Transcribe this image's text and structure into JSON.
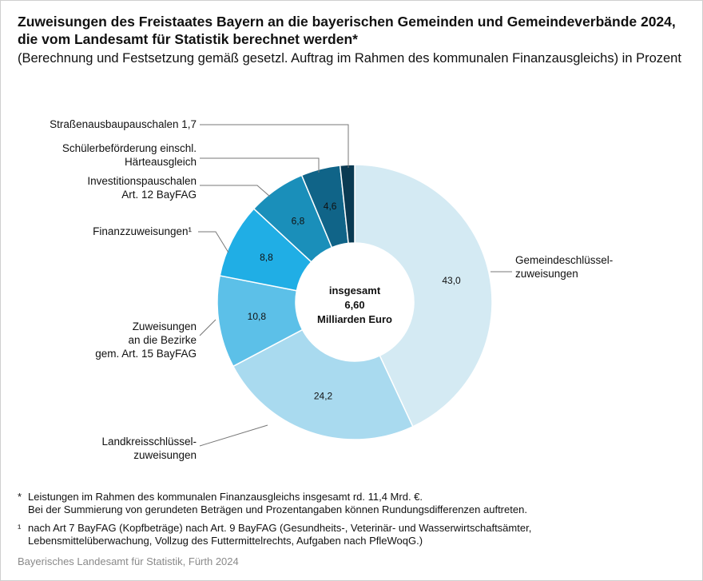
{
  "title": "Zuweisungen des Freistaates Bayern an die bayerischen Gemeinden und Gemeindeverbände 2024, die vom Landesamt für Statistik berechnet werden*",
  "subtitle": "(Berechnung und Festsetzung gemäß gesetzl. Auftrag im Rahmen des kommunalen Finanzausgleichs) in Prozent",
  "chart_data": {
    "type": "pie",
    "donut": true,
    "center_label": [
      "insgesamt",
      "6,60",
      "Milliarden Euro"
    ],
    "unit": "Prozent",
    "slices": [
      {
        "label": "Gemeindeschlüsselzuweisungen",
        "label_lines": [
          "Gemeindeschlüssel-",
          "zuweisungen"
        ],
        "value": 43.0,
        "value_label": "43,0",
        "color": "#d4eaf3"
      },
      {
        "label": "Landkreisschlüsselzuweisungen",
        "label_lines": [
          "Landkreisschlüssel-",
          "zuweisungen"
        ],
        "value": 24.2,
        "value_label": "24,2",
        "color": "#a9daef"
      },
      {
        "label": "Zuweisungen an die Bezirke gem. Art. 15 BayFAG",
        "label_lines": [
          "Zuweisungen",
          "an die Bezirke",
          "gem. Art. 15 BayFAG"
        ],
        "value": 10.8,
        "value_label": "10,8",
        "color": "#5cc0e8"
      },
      {
        "label": "Finanzzuweisungen¹",
        "label_lines": [
          "Finanzzuweisungen¹"
        ],
        "value": 8.8,
        "value_label": "8,8",
        "color": "#20aee5"
      },
      {
        "label": "Investitionspauschalen Art. 12 BayFAG",
        "label_lines": [
          "Investitionspauschalen",
          "Art. 12 BayFAG"
        ],
        "value": 6.8,
        "value_label": "6,8",
        "color": "#1a8fba"
      },
      {
        "label": "Schülerbeförderung einschl. Härteausgleich",
        "label_lines": [
          "Schülerbeförderung einschl.",
          "Härteausgleich"
        ],
        "value": 4.6,
        "value_label": "4,6",
        "color": "#106488"
      },
      {
        "label": "Straßenausbaupauschalen",
        "label_lines": [
          "Straßenausbaupauschalen 1,7"
        ],
        "value": 1.7,
        "value_label": "",
        "color": "#0a3a52"
      }
    ]
  },
  "footnotes": [
    {
      "mark": "*",
      "lines": [
        "Leistungen im Rahmen des kommunalen Finanzausgleichs insgesamt rd. 11,4 Mrd. €.",
        "Bei der Summierung von gerundeten Beträgen und Prozentangaben können Rundungsdifferenzen auftreten."
      ]
    },
    {
      "mark": "¹",
      "lines": [
        "nach Art 7 BayFAG (Kopfbeträge) nach Art. 9 BayFAG (Gesundheits-, Veterinär- und Wasserwirtschaftsämter,",
        "Lebensmittelüberwachung, Vollzug des Futtermittelrechts, Aufgaben nach PfleWoqG.)"
      ]
    }
  ],
  "source": "Bayerisches Landesamt für Statistik, Fürth 2024"
}
